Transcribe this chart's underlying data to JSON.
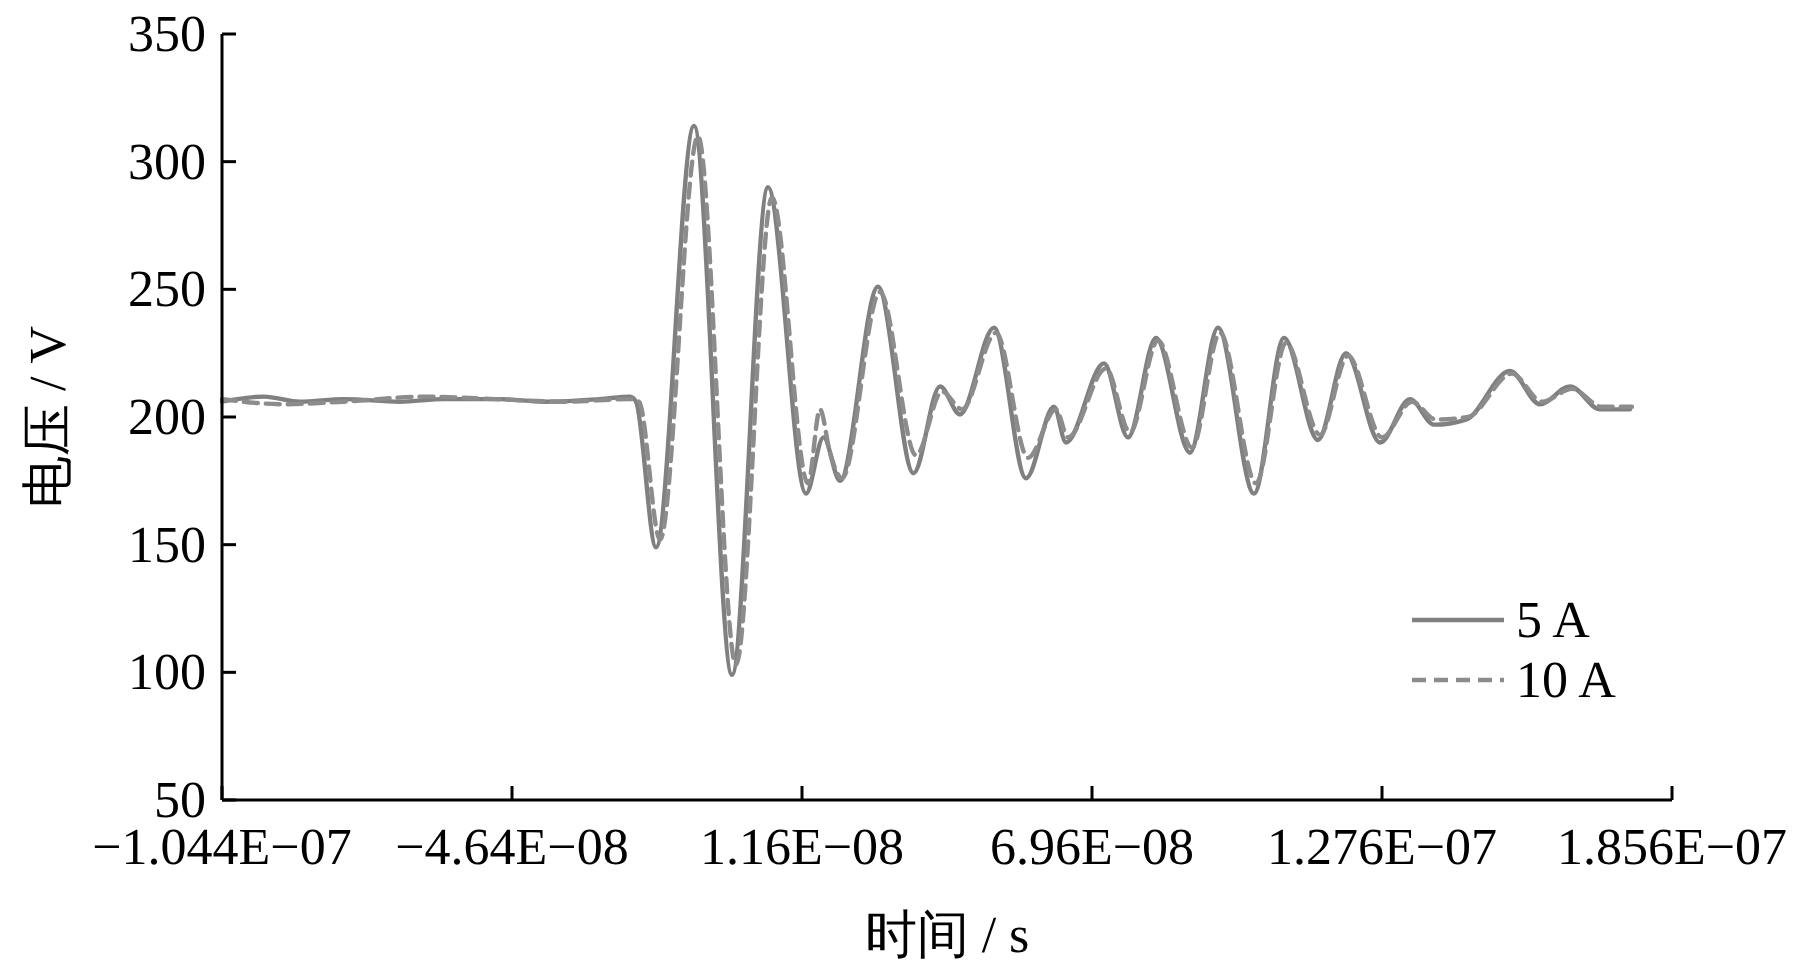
{
  "chart_data": {
    "type": "line",
    "xlabel": "时间 / s",
    "ylabel": "电压 / V",
    "xlim": [
      -1.044e-07,
      1.856e-07
    ],
    "xticks": [
      {
        "value": -1.044e-07,
        "label": "−1.044E−07"
      },
      {
        "value": -4.64e-08,
        "label": "−4.64E−08"
      },
      {
        "value": 1.16e-08,
        "label": "1.16E−08"
      },
      {
        "value": 6.96e-08,
        "label": "6.96E−08"
      },
      {
        "value": 1.276e-07,
        "label": "1.276E−07"
      },
      {
        "value": 1.856e-07,
        "label": "1.856E−07"
      }
    ],
    "ylim": [
      50,
      350
    ],
    "yticks": [
      50,
      100,
      150,
      200,
      250,
      300,
      350
    ],
    "legend": "bottom right",
    "series": [
      {
        "name": "5 A",
        "color": "#808080",
        "line_style": "solid",
        "x": [
          -1.044e-07,
          -9.6e-08,
          -8.88e-08,
          -8e-08,
          -6.88e-08,
          -6e-08,
          -4.88e-08,
          -4e-08,
          -2.88e-08,
          -2.28e-08,
          -2.16e-08,
          -1.76e-08,
          -1e-08,
          -2.4e-09,
          4.8e-09,
          1.24e-08,
          1.59e-08,
          1.92e-08,
          2.68e-08,
          3.39e-08,
          3.92e-08,
          4.32e-08,
          5e-08,
          5.64e-08,
          6.2e-08,
          6.44e-08,
          7.2e-08,
          7.68e-08,
          8.24e-08,
          8.92e-08,
          9.48e-08,
          1.02e-07,
          1.08e-07,
          1.148e-07,
          1.204e-07,
          1.272e-07,
          1.332e-07,
          1.38e-07,
          1.444e-07,
          1.532e-07,
          1.592e-07,
          1.652e-07,
          1.712e-07,
          1.772e-07
        ],
        "values": [
          206,
          208,
          206,
          207,
          206,
          207,
          207,
          206,
          207,
          208,
          206,
          149,
          314,
          99,
          290,
          170,
          192,
          175,
          251,
          178,
          212,
          201,
          235,
          176,
          204,
          190,
          221,
          192,
          231,
          186,
          235,
          170,
          231,
          191,
          225,
          190,
          207,
          197,
          199,
          218,
          205,
          212,
          203,
          203
        ]
      },
      {
        "name": "10 A",
        "color": "#8c8c8c",
        "line_style": "dashed",
        "x": [
          -1.044e-07,
          -9.2e-08,
          -8e-08,
          -6.4e-08,
          -5e-08,
          -3.6e-08,
          -2.28e-08,
          -2.1e-08,
          -1.68e-08,
          -9.2e-09,
          -1.6e-09,
          5.6e-09,
          1.28e-08,
          1.52e-08,
          1.72e-08,
          1.96e-08,
          2.72e-08,
          3.44e-08,
          3.96e-08,
          4.36e-08,
          5.04e-08,
          5.68e-08,
          6.24e-08,
          6.48e-08,
          7.24e-08,
          7.72e-08,
          8.28e-08,
          8.96e-08,
          9.52e-08,
          1.024e-07,
          1.084e-07,
          1.152e-07,
          1.208e-07,
          1.276e-07,
          1.336e-07,
          1.384e-07,
          1.448e-07,
          1.536e-07,
          1.596e-07,
          1.656e-07,
          1.716e-07,
          1.776e-07
        ],
        "values": [
          207,
          205,
          206,
          208,
          207,
          206,
          207,
          206,
          152,
          310,
          103,
          286,
          174,
          203,
          186,
          176,
          249,
          185,
          210,
          203,
          233,
          184,
          203,
          192,
          219,
          194,
          230,
          188,
          233,
          174,
          229,
          193,
          224,
          192,
          206,
          199,
          200,
          217,
          206,
          211,
          204,
          204
        ]
      }
    ]
  }
}
